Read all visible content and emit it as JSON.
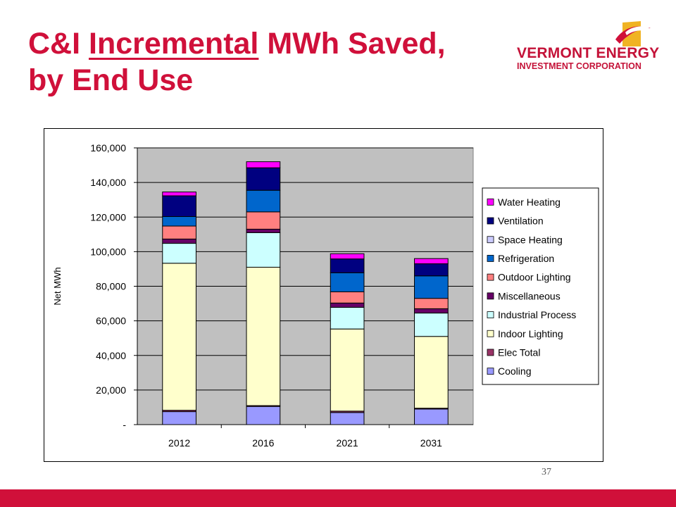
{
  "slide": {
    "title_part1": "C&I ",
    "title_underlined": "Incremental",
    "title_part2": " MWh Saved,",
    "title_line2": "by End Use",
    "page_number": "37",
    "accent_color": "#d0103a"
  },
  "logo": {
    "line1": "VERMONT ENERGY",
    "line2": "INVESTMENT CORPORATION",
    "colors": [
      "#f0b323",
      "#d0103a"
    ]
  },
  "chart_data": {
    "type": "bar",
    "stacked": true,
    "categories": [
      "2012",
      "2016",
      "2021",
      "2031"
    ],
    "ylabel": "Net MWh",
    "xlabel": "",
    "ylim": [
      0,
      160000
    ],
    "yticks": [
      0,
      20000,
      40000,
      60000,
      80000,
      100000,
      120000,
      140000,
      160000
    ],
    "ytick_labels": [
      "-",
      "20,000",
      "40,000",
      "60,000",
      "80,000",
      "100,000",
      "120,000",
      "140,000",
      "160,000"
    ],
    "grid": true,
    "legend_position": "right",
    "plot_background": "#c0c0c0",
    "series": [
      {
        "name": "Cooling",
        "color": "#9999ff",
        "values": [
          7500,
          10500,
          7000,
          9000
        ]
      },
      {
        "name": "Elec Total",
        "color": "#993366",
        "values": [
          800,
          500,
          800,
          500
        ]
      },
      {
        "name": "Indoor Lighting",
        "color": "#ffffcc",
        "values": [
          85000,
          80000,
          47500,
          41500
        ]
      },
      {
        "name": "Industrial Process",
        "color": "#ccffff",
        "values": [
          11500,
          20000,
          12500,
          13500
        ]
      },
      {
        "name": "Miscellaneous",
        "color": "#660066",
        "values": [
          2500,
          2000,
          2500,
          2500
        ]
      },
      {
        "name": "Outdoor Lighting",
        "color": "#ff8080",
        "values": [
          7500,
          10000,
          6500,
          6000
        ]
      },
      {
        "name": "Refrigeration",
        "color": "#0066cc",
        "values": [
          5500,
          12500,
          11000,
          13000
        ]
      },
      {
        "name": "Space Heating",
        "color": "#ccccff",
        "values": [
          0,
          0,
          0,
          0
        ]
      },
      {
        "name": "Ventilation",
        "color": "#000080",
        "values": [
          12000,
          13000,
          8000,
          7000
        ]
      },
      {
        "name": "Water Heating",
        "color": "#ff00ff",
        "values": [
          2200,
          3500,
          3000,
          3000
        ]
      }
    ]
  }
}
